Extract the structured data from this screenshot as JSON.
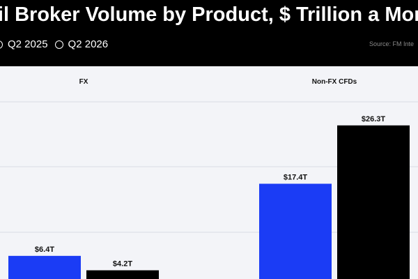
{
  "header": {
    "title": "etail Broker Volume by Product, $ Trillion a Month",
    "legend": [
      "Q2 2025",
      "Q2 2026"
    ],
    "source": "Source: FM Inte"
  },
  "colors": {
    "header_bg": "#000000",
    "series_1": "#1b3cf5",
    "series_2": "#000000",
    "panel_bg": "#f3f4f8"
  },
  "chart_data": {
    "type": "bar",
    "title": "etail Broker Volume by Product, $ Trillion a Month",
    "categories": [
      "FX",
      "Non-FX CFDs"
    ],
    "series": [
      {
        "name": "Q2 2025",
        "values": [
          6.4,
          17.4
        ]
      },
      {
        "name": "Q2 2026",
        "values": [
          4.2,
          26.3
        ]
      }
    ],
    "data_labels": [
      [
        "$6.4T",
        "$17.4T"
      ],
      [
        "$4.2T",
        "$26.3T"
      ]
    ],
    "ylim": [
      0,
      30
    ],
    "grid": true,
    "legend_position": "top-left"
  }
}
